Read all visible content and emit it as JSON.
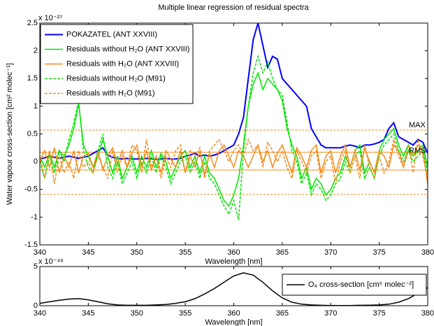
{
  "chart_data": [
    {
      "type": "line",
      "title": "Multiple linear regression of residual spectra",
      "xlabel": "Wavelength [nm]",
      "ylabel": "Water vapour cross-section [cm² molec⁻¹]",
      "y_multiplier": "x 10⁻²⁷",
      "xlim": [
        340,
        380
      ],
      "ylim": [
        -1.5,
        2.5
      ],
      "xticks": [
        340,
        345,
        350,
        355,
        360,
        365,
        370,
        375,
        380
      ],
      "yticks": [
        -1.5,
        -1,
        -0.5,
        0,
        0.5,
        1,
        1.5,
        2,
        2.5
      ],
      "legend": "upper left",
      "x": [
        340,
        340.5,
        341,
        341.5,
        342,
        342.5,
        343,
        343.5,
        344,
        344.5,
        345,
        345.5,
        346,
        346.5,
        347,
        347.5,
        348,
        348.5,
        349,
        349.5,
        350,
        350.5,
        351,
        351.5,
        352,
        352.5,
        353,
        353.5,
        354,
        354.5,
        355,
        355.5,
        356,
        356.5,
        357,
        357.5,
        358,
        358.5,
        359,
        359.5,
        360,
        360.5,
        361,
        361.5,
        362,
        362.5,
        363,
        363.5,
        364,
        364.5,
        365,
        365.5,
        366,
        366.5,
        367,
        367.5,
        368,
        368.5,
        369,
        369.5,
        370,
        370.5,
        371,
        371.5,
        372,
        372.5,
        373,
        373.5,
        374,
        374.5,
        375,
        375.5,
        376,
        376.5,
        377,
        377.5,
        378,
        378.5,
        379,
        379.5,
        380
      ],
      "series": [
        {
          "name": "POKAZATEL (ANT XXVIII)",
          "color": "#0000ff",
          "dashed": false,
          "width": 2,
          "values": [
            0.05,
            0.07,
            0.1,
            0.08,
            0.06,
            0.08,
            0.1,
            0.08,
            0.06,
            0.08,
            0.1,
            0.15,
            0.2,
            0.25,
            0.12,
            0.08,
            0.06,
            0.05,
            0.06,
            0.05,
            0.05,
            0.05,
            0.06,
            0.05,
            0.04,
            0.05,
            0.06,
            0.05,
            0.05,
            0.06,
            0.1,
            0.12,
            0.15,
            0.1,
            0.12,
            0.1,
            0.12,
            0.15,
            0.2,
            0.25,
            0.3,
            0.5,
            0.8,
            1.5,
            2.2,
            2.5,
            2.1,
            1.7,
            1.9,
            1.85,
            1.5,
            1.4,
            1.3,
            1.2,
            1.1,
            1.0,
            0.6,
            0.45,
            0.3,
            0.25,
            0.25,
            0.25,
            0.25,
            0.28,
            0.3,
            0.28,
            0.25,
            0.3,
            0.3,
            0.32,
            0.35,
            0.4,
            0.6,
            0.7,
            0.45,
            0.4,
            0.35,
            0.3,
            0.4,
            0.35,
            0.15
          ]
        },
        {
          "name": "Residuals without H₂O (ANT XXVIII)",
          "color": "#00e600",
          "dashed": false,
          "width": 1.5,
          "values": [
            0.1,
            -0.1,
            0.15,
            -0.1,
            0.2,
            0.1,
            0.3,
            0.6,
            1.05,
            0.3,
            0.1,
            -0.1,
            0.1,
            0.4,
            0.1,
            -0.2,
            0.1,
            -0.3,
            -0.1,
            0.1,
            -0.2,
            0.1,
            -0.1,
            0.2,
            -0.1,
            0.15,
            0.0,
            -0.3,
            -0.1,
            0.1,
            0.2,
            -0.1,
            0.1,
            -0.2,
            0.1,
            -0.2,
            -0.3,
            -0.5,
            -0.7,
            -0.8,
            -0.6,
            -0.3,
            0.3,
            1.0,
            1.4,
            1.6,
            1.3,
            1.5,
            1.4,
            1.3,
            1.1,
            0.6,
            0.3,
            0.1,
            -0.3,
            -0.1,
            -0.5,
            -0.3,
            -0.4,
            -0.6,
            -0.5,
            -0.3,
            -0.2,
            0.1,
            -0.1,
            0.2,
            0.3,
            -0.2,
            0.0,
            -0.2,
            0.2,
            0.4,
            0.5,
            0.6,
            0.3,
            0.1,
            0.3,
            0.1,
            0.2,
            0.3,
            -0.1
          ]
        },
        {
          "name": "Residuals with H₂O (ANT XXVIII)",
          "color": "#f28c1c",
          "dashed": false,
          "width": 1.5,
          "values": [
            0.0,
            0.2,
            -0.1,
            0.25,
            -0.2,
            0.1,
            -0.1,
            0.2,
            -0.2,
            0.1,
            0.15,
            -0.1,
            0.2,
            -0.15,
            0.1,
            0.25,
            -0.05,
            0.2,
            -0.1,
            0.15,
            0.3,
            -0.1,
            0.2,
            -0.15,
            0.1,
            -0.2,
            0.2,
            0.05,
            -0.1,
            0.2,
            -0.2,
            0.1,
            -0.1,
            0.2,
            -0.25,
            0.15,
            -0.1,
            0.2,
            0.3,
            0.1,
            -0.1,
            0.2,
            0.1,
            -0.1,
            0.1,
            0.3,
            0.0,
            0.2,
            -0.1,
            0.15,
            0.3,
            0.05,
            -0.2,
            0.25,
            0.1,
            -0.1,
            0.2,
            0.3,
            -0.2,
            0.1,
            0.2,
            -0.2,
            0.1,
            0.3,
            -0.1,
            0.2,
            -0.15,
            0.25,
            0.0,
            -0.2,
            0.2,
            0.1,
            -0.1,
            0.3,
            0.2,
            -0.1,
            0.2,
            0.1,
            0.3,
            0.2,
            -0.4
          ]
        },
        {
          "name": "Residuals without H₂O (M91)",
          "color": "#00e600",
          "dashed": true,
          "width": 1.5,
          "values": [
            0.0,
            -0.3,
            0.1,
            -0.2,
            0.2,
            0.0,
            0.4,
            0.7,
            1.1,
            0.2,
            -0.1,
            -0.2,
            0.2,
            0.5,
            -0.1,
            -0.3,
            0.0,
            -0.4,
            -0.2,
            0.0,
            -0.3,
            0.0,
            -0.2,
            0.1,
            -0.2,
            0.1,
            -0.1,
            -0.4,
            -0.2,
            0.0,
            0.1,
            -0.2,
            0.0,
            -0.3,
            0.0,
            -0.3,
            -0.4,
            -0.6,
            -0.8,
            -0.95,
            -0.7,
            -1.05,
            0.2,
            1.0,
            1.6,
            1.9,
            1.6,
            1.8,
            1.5,
            1.3,
            1.2,
            0.7,
            0.2,
            0.0,
            -0.4,
            -0.2,
            -0.6,
            -0.4,
            -0.5,
            -0.7,
            -0.6,
            -0.4,
            -0.3,
            0.0,
            -0.2,
            0.1,
            0.2,
            -0.3,
            -0.1,
            -0.3,
            0.1,
            0.3,
            0.4,
            0.5,
            0.2,
            0.0,
            0.2,
            0.0,
            0.1,
            0.2,
            -0.2
          ]
        },
        {
          "name": "Residuals with H₂O (M91)",
          "color": "#f28c1c",
          "dashed": true,
          "width": 1.5,
          "values": [
            0.1,
            -0.3,
            0.2,
            -0.4,
            0.1,
            -0.2,
            0.0,
            -0.3,
            0.2,
            -0.1,
            0.0,
            -0.2,
            0.1,
            -0.1,
            -0.3,
            0.2,
            -0.2,
            0.1,
            -0.1,
            0.3,
            0.2,
            -0.2,
            0.4,
            -0.1,
            0.1,
            -0.3,
            0.1,
            -0.1,
            0.2,
            0.3,
            -0.2,
            0.2,
            0.1,
            0.25,
            -0.3,
            0.2,
            0.3,
            0.4,
            0.2,
            0.0,
            0.2,
            0.3,
            0.1,
            0.4,
            0.2,
            0.3,
            -0.1,
            0.35,
            0.2,
            0.0,
            0.2,
            -0.1,
            -0.3,
            0.2,
            0.0,
            -0.2,
            0.1,
            0.2,
            -0.3,
            0.0,
            0.1,
            -0.4,
            0.0,
            0.2,
            -0.2,
            0.1,
            -0.3,
            0.3,
            -0.1,
            -0.3,
            0.1,
            -0.2,
            0.0,
            0.4,
            0.1,
            -0.1,
            0.3,
            -0.2,
            0.4,
            0.1,
            -0.3
          ]
        }
      ],
      "hlines": [
        {
          "value": 0.57,
          "color": "#f28c1c",
          "dashed": true
        },
        {
          "value": 0.17,
          "color": "#f28c1c",
          "dashed": false
        },
        {
          "value": -0.15,
          "color": "#f28c1c",
          "dashed": false
        },
        {
          "value": -0.59,
          "color": "#f28c1c",
          "dashed": true
        }
      ],
      "annotations": [
        "MAX",
        "RMS"
      ]
    },
    {
      "type": "line",
      "xlabel": "Wavelength [nm]",
      "y_multiplier": "x 10⁻⁴⁶",
      "xlim": [
        340,
        380
      ],
      "ylim": [
        0,
        5
      ],
      "xticks": [
        340,
        345,
        350,
        355,
        360,
        365,
        370,
        375,
        380
      ],
      "yticks": [
        0,
        5
      ],
      "legend": "upper right",
      "x": [
        340,
        341,
        342,
        343,
        344,
        345,
        346,
        347,
        348,
        349,
        350,
        351,
        352,
        353,
        354,
        355,
        356,
        357,
        358,
        359,
        360,
        361,
        362,
        363,
        364,
        365,
        366,
        367,
        368,
        369,
        370,
        371,
        372,
        373,
        374,
        375,
        376,
        377,
        378,
        379,
        380
      ],
      "series": [
        {
          "name": "O₄ cross-section [cm⁵ molec⁻²]",
          "color": "#000000",
          "dashed": false,
          "width": 1.5,
          "values": [
            0.3,
            0.5,
            0.7,
            0.85,
            0.9,
            0.75,
            0.5,
            0.25,
            0.1,
            0.05,
            0.05,
            0.05,
            0.1,
            0.15,
            0.3,
            0.5,
            0.9,
            1.5,
            2.2,
            3.0,
            3.8,
            4.2,
            3.9,
            3.0,
            1.9,
            1.0,
            0.45,
            0.2,
            0.1,
            0.05,
            0.03,
            0.03,
            0.03,
            0.05,
            0.07,
            0.1,
            0.2,
            0.45,
            0.9,
            1.6,
            2.3
          ]
        }
      ]
    }
  ]
}
